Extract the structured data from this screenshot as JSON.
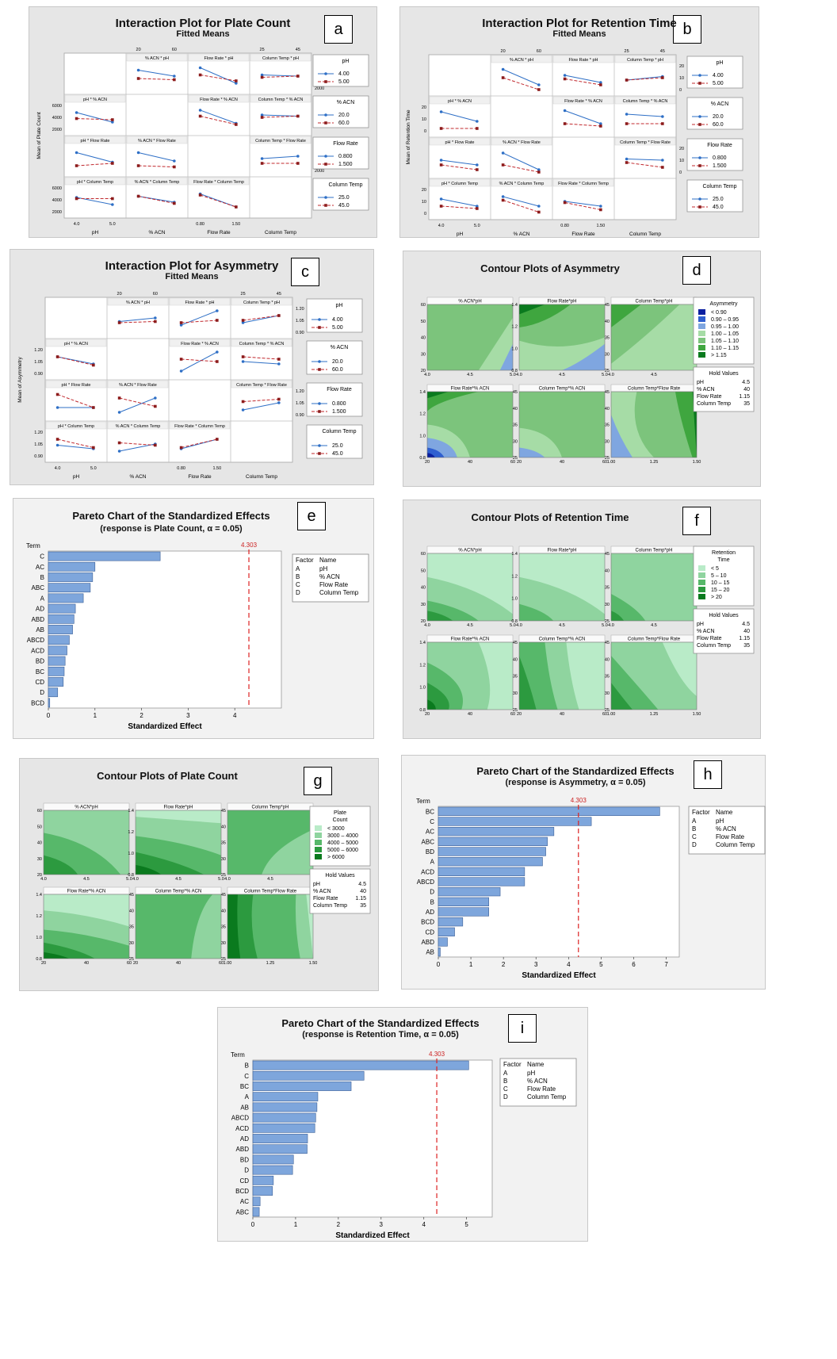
{
  "labels": [
    "a",
    "b",
    "c",
    "d",
    "e",
    "f",
    "g",
    "h",
    "i"
  ],
  "interaction_common": {
    "subtitle": "Fitted Means",
    "cell_titles": [
      "% ACN * pH",
      "Flow Rate * pH",
      "Column Temp * pH",
      "pH * % ACN",
      "Flow Rate * % ACN",
      "Column Temp * % ACN",
      "pH * Flow Rate",
      "% ACN * Flow Rate",
      "Column Temp * Flow Rate",
      "pH * Column Temp",
      "% ACN * Column Temp",
      "Flow Rate * Column Temp"
    ],
    "x_labels": [
      "pH",
      "% ACN",
      "Flow Rate",
      "Column Temp"
    ],
    "top_ticks": {
      "acn": [
        "20",
        "60"
      ],
      "temp": [
        "25",
        "45"
      ]
    },
    "bottom_ticks": {
      "ph": [
        "4.0",
        "5.0"
      ],
      "flow": [
        "0.80",
        "1.50"
      ]
    },
    "legends": [
      {
        "title": "pH",
        "items": [
          "4.00",
          "5.00"
        ]
      },
      {
        "title": "% ACN",
        "items": [
          "20.0",
          "60.0"
        ]
      },
      {
        "title": "Flow Rate",
        "items": [
          "0.800",
          "1.500"
        ]
      },
      {
        "title": "Column Temp",
        "items": [
          "25.0",
          "45.0"
        ]
      }
    ]
  },
  "contour_common": {
    "cell_titles": [
      "% ACN*pH",
      "Flow Rate*pH",
      "Column Temp*pH",
      "Flow Rate*% ACN",
      "Column Temp*% ACN",
      "Column Temp*Flow Rate"
    ],
    "hold_title": "Hold Values",
    "hold_values": [
      [
        "pH",
        "4.5"
      ],
      [
        "% ACN",
        "40"
      ],
      [
        "Flow Rate",
        "1.15"
      ],
      [
        "Column Temp",
        "35"
      ]
    ]
  },
  "pareto_common": {
    "title": "Pareto Chart of the Standardized Effects",
    "ylabel": "Term",
    "xlabel": "Standardized Effect",
    "critical": "4.303",
    "factor_header": [
      "Factor",
      "Name"
    ],
    "factors": [
      [
        "A",
        "pH"
      ],
      [
        "B",
        "% ACN"
      ],
      [
        "C",
        "Flow Rate"
      ],
      [
        "D",
        "Column Temp"
      ]
    ]
  },
  "chart_data": [
    {
      "id": "a",
      "type": "line",
      "title": "Interaction Plot for Plate Count",
      "ylabel": "Mean of Plate Count",
      "y_ticks": [
        "2000",
        "4000",
        "6000"
      ],
      "ylim": [
        2000,
        7000
      ]
    },
    {
      "id": "b",
      "type": "line",
      "title": "Interaction Plot for Retention Time",
      "ylabel": "Mean of Retention Time",
      "y_ticks": [
        "0",
        "10",
        "20"
      ],
      "ylim": [
        0,
        25
      ]
    },
    {
      "id": "c",
      "type": "line",
      "title": "Interaction Plot for Asymmetry",
      "ylabel": "Mean of Asymmetry",
      "y_ticks": [
        "0.90",
        "1.05",
        "1.20"
      ],
      "ylim": [
        0.85,
        1.22
      ]
    },
    {
      "id": "d",
      "type": "heatmap",
      "title": "Contour Plots of Asymmetry",
      "legend_title": "Asymmetry",
      "levels": [
        "< 0.90",
        "0.90 – 0.95",
        "0.95 – 1.00",
        "1.00 – 1.05",
        "1.05 – 1.10",
        "1.10 – 1.15",
        "> 1.15"
      ],
      "colors": [
        "#0a1fa0",
        "#2f5fd0",
        "#7fa6e0",
        "#a6dca6",
        "#7cc47c",
        "#3fa63f",
        "#0a7a1e"
      ]
    },
    {
      "id": "e",
      "type": "bar",
      "title": "Pareto Chart of the Standardized Effects",
      "subtitle": "(response is Plate Count, α = 0.05)",
      "categories": [
        "C",
        "AC",
        "B",
        "ABC",
        "A",
        "AD",
        "ABD",
        "AB",
        "ABCD",
        "ACD",
        "BD",
        "BC",
        "CD",
        "D",
        "BCD"
      ],
      "values": [
        2.4,
        1.0,
        0.95,
        0.9,
        0.75,
        0.58,
        0.55,
        0.52,
        0.45,
        0.4,
        0.36,
        0.34,
        0.32,
        0.2,
        0.03
      ],
      "critical_value": 4.303,
      "xlim": [
        0,
        5
      ],
      "x_ticks": [
        "0",
        "1",
        "2",
        "3",
        "4"
      ]
    },
    {
      "id": "f",
      "type": "heatmap",
      "title": "Contour Plots of Retention Time",
      "legend_title": "Retention Time",
      "levels": [
        "< 5",
        "5 – 10",
        "10 – 15",
        "15 – 20",
        "> 20"
      ],
      "colors": [
        "#b9ebc8",
        "#8fd49f",
        "#57b86a",
        "#2c9a3f",
        "#0a7a1e"
      ]
    },
    {
      "id": "g",
      "type": "heatmap",
      "title": "Contour Plots of Plate Count",
      "legend_title": "Plate Count",
      "levels": [
        "< 3000",
        "3000 – 4000",
        "4000 – 5000",
        "5000 – 6000",
        "> 6000"
      ],
      "colors": [
        "#b9ebc8",
        "#8fd49f",
        "#57b86a",
        "#2c9a3f",
        "#0a7a1e"
      ]
    },
    {
      "id": "h",
      "type": "bar",
      "title": "Pareto Chart of the Standardized Effects",
      "subtitle": "(response is Asymmetry, α = 0.05)",
      "categories": [
        "BC",
        "C",
        "AC",
        "ABC",
        "BD",
        "A",
        "ACD",
        "ABCD",
        "D",
        "B",
        "AD",
        "BCD",
        "CD",
        "ABD",
        "AB"
      ],
      "values": [
        6.8,
        4.7,
        3.55,
        3.35,
        3.3,
        3.2,
        2.65,
        2.65,
        1.9,
        1.55,
        1.55,
        0.75,
        0.5,
        0.28,
        0.06
      ],
      "critical_value": 4.303,
      "xlim": [
        0,
        7.4
      ],
      "x_ticks": [
        "0",
        "1",
        "2",
        "3",
        "4",
        "5",
        "6",
        "7"
      ]
    },
    {
      "id": "i",
      "type": "bar",
      "title": "Pareto Chart of the Standardized Effects",
      "subtitle": "(response is Retention Time, α = 0.05)",
      "categories": [
        "B",
        "C",
        "BC",
        "A",
        "AB",
        "ABCD",
        "ACD",
        "AD",
        "ABD",
        "BD",
        "D",
        "CD",
        "BCD",
        "AC",
        "ABC"
      ],
      "values": [
        5.05,
        2.6,
        2.3,
        1.52,
        1.5,
        1.47,
        1.45,
        1.28,
        1.27,
        0.95,
        0.93,
        0.48,
        0.46,
        0.17,
        0.15
      ],
      "critical_value": 4.303,
      "xlim": [
        0,
        5.6
      ],
      "x_ticks": [
        "0",
        "1",
        "2",
        "3",
        "4",
        "5"
      ]
    }
  ]
}
